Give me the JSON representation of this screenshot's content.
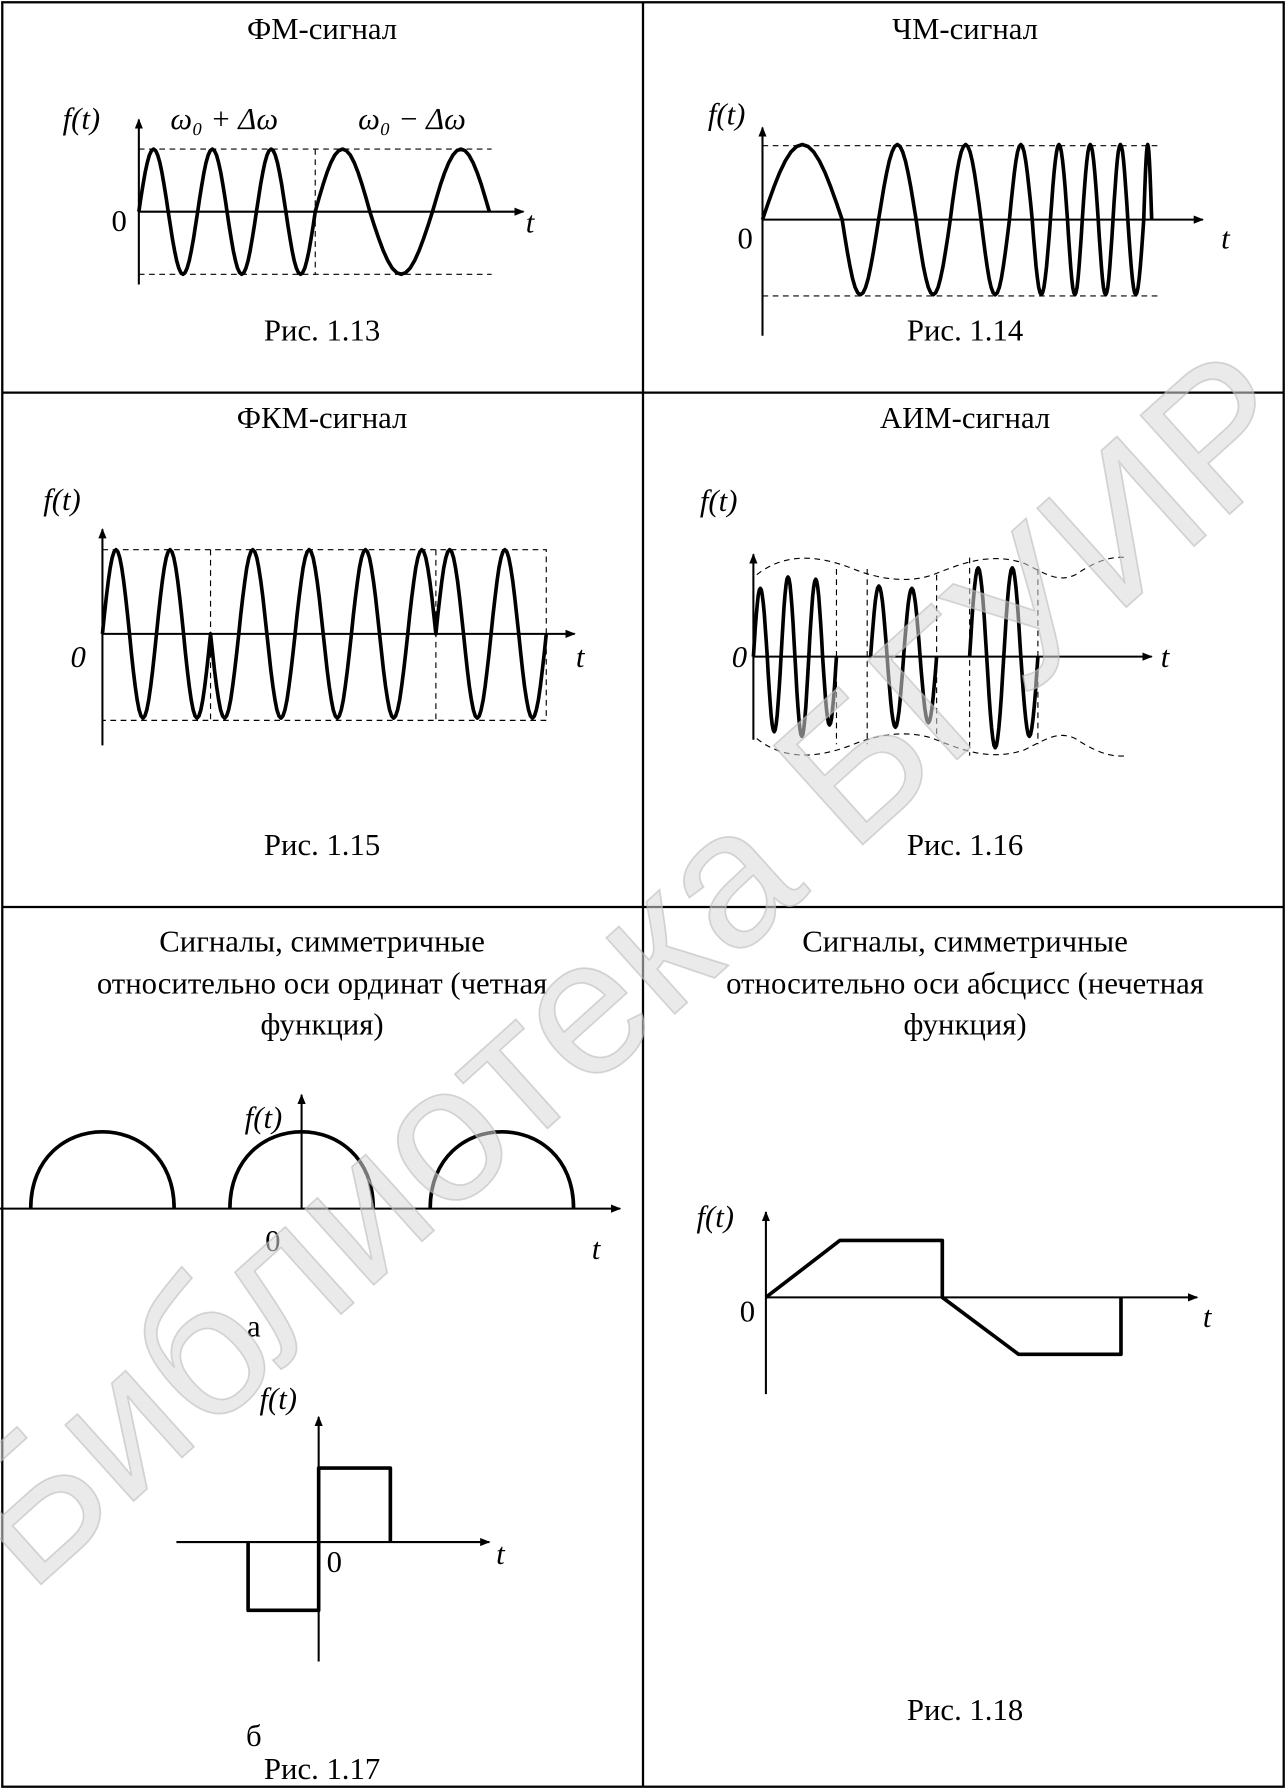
{
  "watermark": "Библиотека БГУИР",
  "figures": [
    {
      "title": "ФМ-сигнал",
      "caption": "Рис. 1.13",
      "y_label": "f(t)",
      "origin": "0",
      "x_label": "t",
      "annotations": [
        "ω₀ + Δω",
        "ω₀ − Δω"
      ]
    },
    {
      "title": "ЧМ-сигнал",
      "caption": "Рис. 1.14",
      "y_label": "f(t)",
      "origin": "0",
      "x_label": "t"
    },
    {
      "title": "ФКМ-сигнал",
      "caption": "Рис. 1.15",
      "y_label": "f(t)",
      "origin": "0",
      "x_label": "t"
    },
    {
      "title": "АИМ-сигнал",
      "caption": "Рис. 1.16",
      "y_label": "f(t)",
      "origin": "0",
      "x_label": "t"
    },
    {
      "title": [
        "Сигналы, симметричные",
        "относительно оси ординат (четная",
        "функция)"
      ],
      "caption": "Рис. 1.17",
      "subfigures": [
        {
          "label": "а",
          "y_label": "f(t)",
          "origin": "0",
          "x_label": "t"
        },
        {
          "label": "б",
          "y_label": "f(t)",
          "origin": "0",
          "x_label": "t"
        }
      ]
    },
    {
      "title": [
        "Сигналы, симметричные",
        "относительно оси абсцисс (нечетная",
        "функция)"
      ],
      "caption": "Рис. 1.18",
      "y_label": "f(t)",
      "origin": "0",
      "x_label": "t"
    }
  ]
}
